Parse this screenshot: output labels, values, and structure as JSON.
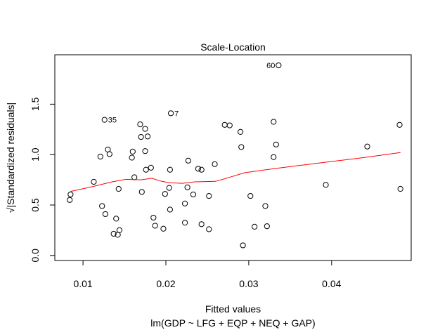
{
  "chart_data": {
    "type": "scatter",
    "title": "Scale-Location",
    "xlabel": "Fitted values",
    "subtitle": "lm(GDP ~ LFG + EQP + NEQ + GAP)",
    "ylabel": "√|Standardized residuals|",
    "xlim": [
      0.0066,
      0.0496
    ],
    "ylim": [
      -0.05,
      1.99
    ],
    "x_ticks": [
      0.01,
      0.02,
      0.03,
      0.04
    ],
    "x_tick_labels": [
      "0.01",
      "0.02",
      "0.03",
      "0.04"
    ],
    "y_ticks": [
      0.0,
      0.5,
      1.0,
      1.5
    ],
    "y_tick_labels": [
      "0.0",
      "0.5",
      "1.0",
      "1.5"
    ],
    "grid": false,
    "point_color": "#000000",
    "smooth_color": "#ff0000",
    "points": [
      {
        "x": 0.0084,
        "y": 0.55
      },
      {
        "x": 0.0085,
        "y": 0.605
      },
      {
        "x": 0.0113,
        "y": 0.73
      },
      {
        "x": 0.0121,
        "y": 0.98
      },
      {
        "x": 0.0123,
        "y": 0.49
      },
      {
        "x": 0.0126,
        "y": 1.345,
        "label": "35"
      },
      {
        "x": 0.0127,
        "y": 0.41
      },
      {
        "x": 0.013,
        "y": 1.05
      },
      {
        "x": 0.0132,
        "y": 1.005
      },
      {
        "x": 0.0137,
        "y": 0.215
      },
      {
        "x": 0.014,
        "y": 0.365
      },
      {
        "x": 0.0142,
        "y": 0.205
      },
      {
        "x": 0.0143,
        "y": 0.66
      },
      {
        "x": 0.0144,
        "y": 0.25
      },
      {
        "x": 0.0159,
        "y": 0.97
      },
      {
        "x": 0.016,
        "y": 1.03
      },
      {
        "x": 0.0162,
        "y": 0.775
      },
      {
        "x": 0.0169,
        "y": 1.3
      },
      {
        "x": 0.017,
        "y": 1.175
      },
      {
        "x": 0.0171,
        "y": 0.63
      },
      {
        "x": 0.0175,
        "y": 1.255
      },
      {
        "x": 0.0175,
        "y": 1.035
      },
      {
        "x": 0.0176,
        "y": 0.85
      },
      {
        "x": 0.0178,
        "y": 1.18
      },
      {
        "x": 0.0182,
        "y": 0.87
      },
      {
        "x": 0.0185,
        "y": 0.375
      },
      {
        "x": 0.0187,
        "y": 0.295
      },
      {
        "x": 0.0197,
        "y": 0.265
      },
      {
        "x": 0.0199,
        "y": 0.61
      },
      {
        "x": 0.0204,
        "y": 0.67
      },
      {
        "x": 0.0205,
        "y": 0.455
      },
      {
        "x": 0.0205,
        "y": 0.85
      },
      {
        "x": 0.0206,
        "y": 1.41,
        "label": "7"
      },
      {
        "x": 0.0223,
        "y": 0.515
      },
      {
        "x": 0.0223,
        "y": 0.325
      },
      {
        "x": 0.0226,
        "y": 0.675
      },
      {
        "x": 0.0227,
        "y": 0.94
      },
      {
        "x": 0.0233,
        "y": 0.605
      },
      {
        "x": 0.0239,
        "y": 0.86
      },
      {
        "x": 0.0243,
        "y": 0.85
      },
      {
        "x": 0.0243,
        "y": 0.31
      },
      {
        "x": 0.0252,
        "y": 0.26
      },
      {
        "x": 0.0252,
        "y": 0.59
      },
      {
        "x": 0.0259,
        "y": 0.905
      },
      {
        "x": 0.0271,
        "y": 1.295
      },
      {
        "x": 0.0277,
        "y": 1.29
      },
      {
        "x": 0.029,
        "y": 1.225
      },
      {
        "x": 0.0291,
        "y": 1.075
      },
      {
        "x": 0.0293,
        "y": 0.1
      },
      {
        "x": 0.0302,
        "y": 0.59
      },
      {
        "x": 0.0307,
        "y": 0.285
      },
      {
        "x": 0.032,
        "y": 0.49
      },
      {
        "x": 0.0322,
        "y": 0.29
      },
      {
        "x": 0.033,
        "y": 1.325
      },
      {
        "x": 0.033,
        "y": 0.975
      },
      {
        "x": 0.0333,
        "y": 1.1
      },
      {
        "x": 0.0336,
        "y": 1.885,
        "label": "60"
      },
      {
        "x": 0.0393,
        "y": 0.7
      },
      {
        "x": 0.0443,
        "y": 1.08
      },
      {
        "x": 0.0482,
        "y": 1.295
      },
      {
        "x": 0.0483,
        "y": 0.66
      }
    ],
    "smooth_line": [
      {
        "x": 0.0085,
        "y": 0.635
      },
      {
        "x": 0.0113,
        "y": 0.685
      },
      {
        "x": 0.0135,
        "y": 0.73
      },
      {
        "x": 0.0152,
        "y": 0.755
      },
      {
        "x": 0.017,
        "y": 0.75
      },
      {
        "x": 0.0183,
        "y": 0.765
      },
      {
        "x": 0.0195,
        "y": 0.735
      },
      {
        "x": 0.0205,
        "y": 0.72
      },
      {
        "x": 0.022,
        "y": 0.715
      },
      {
        "x": 0.0235,
        "y": 0.73
      },
      {
        "x": 0.026,
        "y": 0.735
      },
      {
        "x": 0.0275,
        "y": 0.77
      },
      {
        "x": 0.0295,
        "y": 0.82
      },
      {
        "x": 0.033,
        "y": 0.86
      },
      {
        "x": 0.0393,
        "y": 0.925
      },
      {
        "x": 0.0443,
        "y": 0.975
      },
      {
        "x": 0.0483,
        "y": 1.02
      }
    ]
  }
}
